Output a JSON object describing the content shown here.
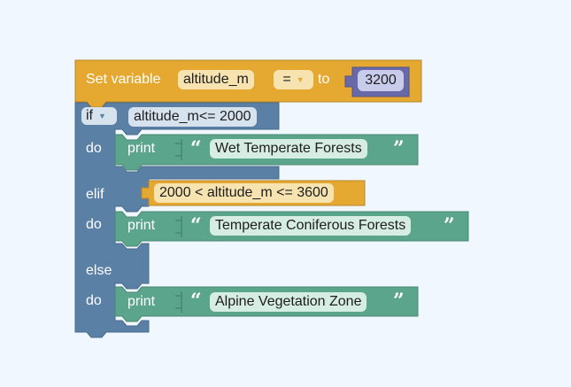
{
  "colors": {
    "background": "#F0F7FF",
    "variable_block": "#E5A830",
    "control_block": "#5B80A5",
    "text_block": "#5BA58C",
    "math_block": "#6869A9"
  },
  "set_block": {
    "label_set": "Set variable",
    "variable": "altitude_m",
    "operator": "=",
    "label_to": "to",
    "value": "3200"
  },
  "if_block": {
    "if_label": "if",
    "condition_if": "altitude_m<= 2000",
    "do_label": "do",
    "elif_label": "elif",
    "condition_elif": "2000 < altitude_m <= 3600",
    "else_label": "else"
  },
  "prints": [
    {
      "label": "print",
      "text": "Wet Temperate Forests"
    },
    {
      "label": "print",
      "text": "Temperate Coniferous Forests"
    },
    {
      "label": "print",
      "text": "Alpine Vegetation Zone"
    }
  ],
  "quote_open": "“",
  "quote_close": "”"
}
